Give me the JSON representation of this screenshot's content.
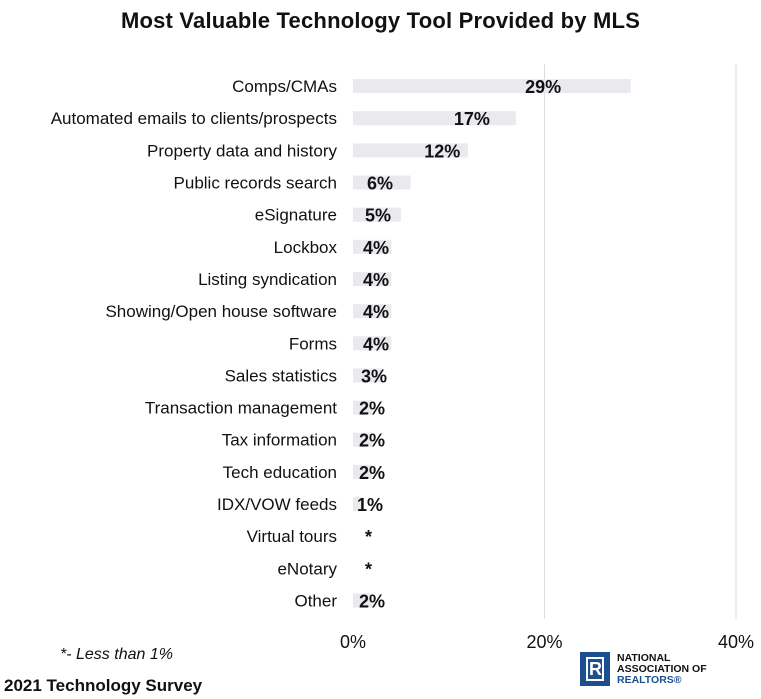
{
  "chart_data": {
    "type": "bar",
    "orientation": "horizontal",
    "title": "Most Valuable Technology Tool Provided by MLS",
    "categories": [
      "Comps/CMAs",
      "Automated emails to clients/prospects",
      "Property data and history",
      "Public records search",
      "eSignature",
      "Lockbox",
      "Listing syndication",
      "Showing/Open house software",
      "Forms",
      "Sales statistics",
      "Transaction management",
      "Tax information",
      "Tech education",
      "IDX/VOW feeds",
      "Virtual tours",
      "eNotary",
      "Other"
    ],
    "values": [
      29,
      17,
      12,
      6,
      5,
      4,
      4,
      4,
      4,
      3,
      2,
      2,
      2,
      1,
      0.5,
      0.5,
      2
    ],
    "value_labels": [
      "29%",
      "17%",
      "12%",
      "6%",
      "5%",
      "4%",
      "4%",
      "4%",
      "4%",
      "3%",
      "2%",
      "2%",
      "2%",
      "1%",
      "*",
      "*",
      "2%"
    ],
    "xlim": [
      0,
      40
    ],
    "xticks": [
      0,
      20,
      40
    ],
    "xtick_labels": [
      "0%",
      "20%",
      "40%"
    ],
    "grid": true,
    "bar_color": "#e9e9ee"
  },
  "footnote": "*- Less than 1%",
  "source": "2021 Technology Survey",
  "logo": {
    "line1": "NATIONAL",
    "line2": "ASSOCIATION OF",
    "line3": "REALTORS®",
    "color": "#1b4f8f"
  }
}
